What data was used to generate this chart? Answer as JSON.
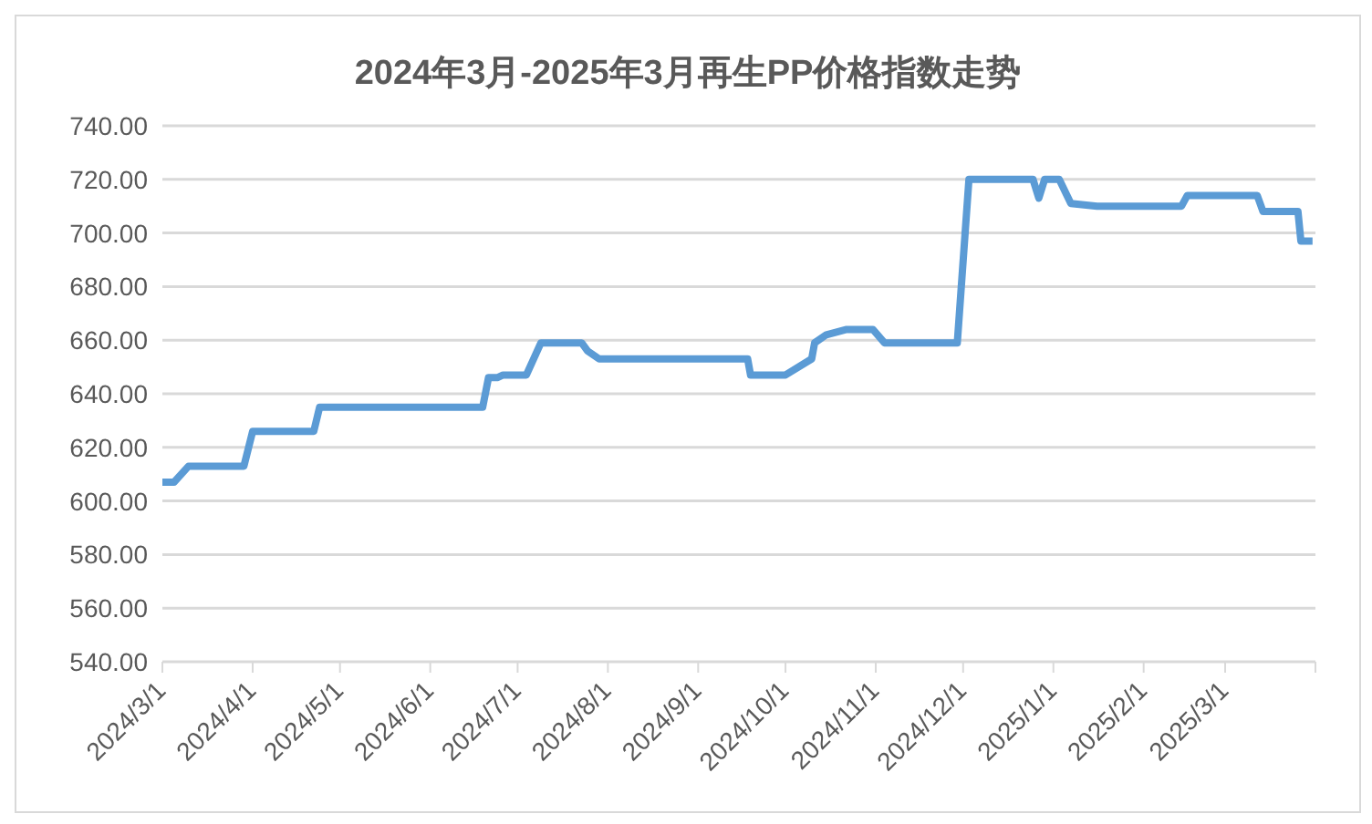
{
  "chart_data": {
    "type": "line",
    "title": "2024年3月-2025年3月再生PP价格指数走势",
    "x": [
      "2024-03-01",
      "2024-03-05",
      "2024-03-10",
      "2024-03-29",
      "2024-04-01",
      "2024-04-22",
      "2024-04-24",
      "2024-06-19",
      "2024-06-21",
      "2024-06-24",
      "2024-06-26",
      "2024-07-04",
      "2024-07-09",
      "2024-07-23",
      "2024-07-25",
      "2024-07-29",
      "2024-09-18",
      "2024-09-19",
      "2024-10-01",
      "2024-10-10",
      "2024-10-11",
      "2024-10-15",
      "2024-10-22",
      "2024-10-31",
      "2024-11-04",
      "2024-11-29",
      "2024-12-03",
      "2024-12-25",
      "2024-12-27",
      "2024-12-29",
      "2025-01-03",
      "2025-01-07",
      "2025-01-16",
      "2025-02-14",
      "2025-02-16",
      "2025-03-12",
      "2025-03-14",
      "2025-03-26",
      "2025-03-27",
      "2025-03-31"
    ],
    "series": [
      {
        "color": "#5b9bd5",
        "values": [
          607,
          607,
          613,
          613,
          626,
          626,
          635,
          635,
          646,
          646,
          647,
          647,
          659,
          659,
          656,
          653,
          653,
          647,
          647,
          653,
          659,
          662,
          664,
          664,
          659,
          659,
          720,
          720,
          713,
          720,
          720,
          711,
          710,
          710,
          714,
          714,
          708,
          708,
          697,
          697
        ]
      }
    ],
    "xlim": [
      "2024-03-01",
      "2025-04-01"
    ],
    "xticks": [
      {
        "value": "2024-03-01",
        "label": "2024/3/1"
      },
      {
        "value": "2024-04-01",
        "label": "2024/4/1"
      },
      {
        "value": "2024-05-01",
        "label": "2024/5/1"
      },
      {
        "value": "2024-06-01",
        "label": "2024/6/1"
      },
      {
        "value": "2024-07-01",
        "label": "2024/7/1"
      },
      {
        "value": "2024-08-01",
        "label": "2024/8/1"
      },
      {
        "value": "2024-09-01",
        "label": "2024/9/1"
      },
      {
        "value": "2024-10-01",
        "label": "2024/10/1"
      },
      {
        "value": "2024-11-01",
        "label": "2024/11/1"
      },
      {
        "value": "2024-12-01",
        "label": "2024/12/1"
      },
      {
        "value": "2025-01-01",
        "label": "2025/1/1"
      },
      {
        "value": "2025-02-01",
        "label": "2025/2/1"
      },
      {
        "value": "2025-03-01",
        "label": "2025/3/1"
      },
      {
        "value": "2025-04-01",
        "label": null
      }
    ],
    "ylim": [
      540,
      740
    ],
    "yticks": [
      {
        "value": 540,
        "label": "540.00"
      },
      {
        "value": 560,
        "label": "560.00"
      },
      {
        "value": 580,
        "label": "580.00"
      },
      {
        "value": 600,
        "label": "600.00"
      },
      {
        "value": 620,
        "label": "620.00"
      },
      {
        "value": 640,
        "label": "640.00"
      },
      {
        "value": 660,
        "label": "660.00"
      },
      {
        "value": 680,
        "label": "680.00"
      },
      {
        "value": 700,
        "label": "700.00"
      },
      {
        "value": 720,
        "label": "720.00"
      },
      {
        "value": 740,
        "label": "740.00"
      }
    ],
    "grid": "y",
    "legend": false,
    "marker": "none",
    "line_style": "solid"
  }
}
